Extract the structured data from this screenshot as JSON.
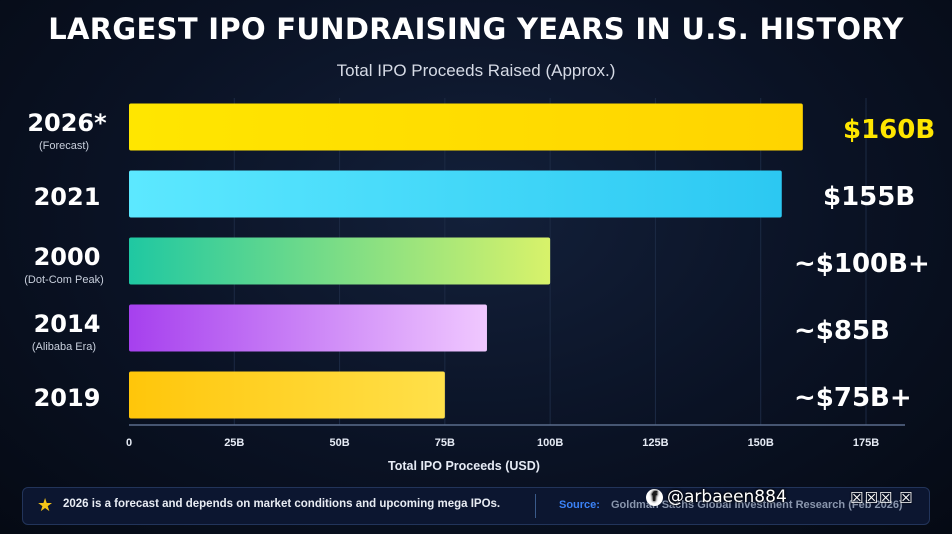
{
  "chart_data": {
    "type": "bar",
    "orientation": "horizontal",
    "title": "LARGEST IPO FUNDRAISING YEARS IN U.S. HISTORY",
    "subtitle": "Total IPO Proceeds Raised (Approx.)",
    "xlabel": "Total IPO Proceeds (USD)",
    "ylabel": "",
    "xlim": [
      0,
      175
    ],
    "x_ticks": [
      "0",
      "25B",
      "50B",
      "75B",
      "100B",
      "125B",
      "150B",
      "175B"
    ],
    "grid": true,
    "categories": [
      "2026*",
      "2021",
      "2000",
      "2014",
      "2019"
    ],
    "category_notes": [
      "(Forecast)",
      "",
      "(Dot-Com Peak)",
      "(Alibaba Era)",
      ""
    ],
    "values": [
      160,
      155,
      100,
      85,
      75
    ],
    "data_labels": [
      "$160B",
      "$155B",
      "~$100B+",
      "~$85B",
      "~$75B+"
    ],
    "bar_colors": [
      [
        "#ffe600",
        "#ffd400"
      ],
      [
        "#5ce8ff",
        "#2cc8f2"
      ],
      [
        "#1fc8a2",
        "#d8f26a"
      ],
      [
        "#a640ee",
        "#f0c8ff"
      ],
      [
        "#ffc60a",
        "#ffe04a"
      ]
    ],
    "label_colors": [
      "#ffe600",
      "#ffffff",
      "#ffffff",
      "#ffffff",
      "#ffffff"
    ]
  },
  "footer": {
    "note": "2026 is a forecast and depends on market conditions and upcoming mega IPOs.",
    "source_label": "Source:",
    "source_text": "Goldman Sachs Global Investment Research (Feb 2026)"
  },
  "watermark": {
    "handle": "@arbaeen884",
    "icon": "f",
    "tail": "☒☒☒ ☒"
  }
}
